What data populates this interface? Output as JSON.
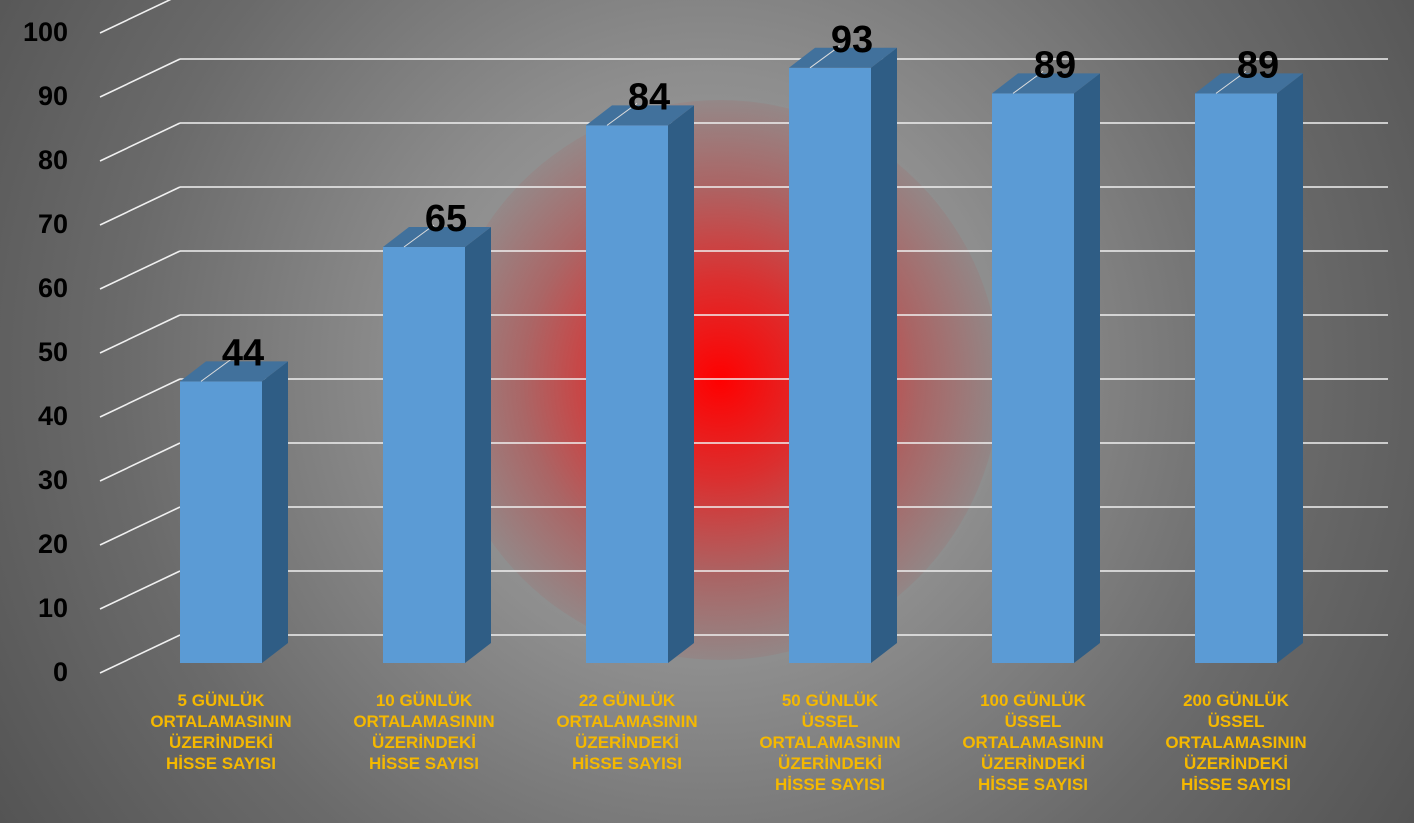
{
  "colors": {
    "bar_front": "#5b9bd5",
    "bar_side": "#2f5d85",
    "bar_top": "#41719c",
    "category_text": "#f5b800",
    "glow": "#ff0000"
  },
  "chart_data": {
    "type": "bar",
    "style": "3d-column",
    "ylim": [
      0,
      100
    ],
    "yticks": [
      "0",
      "10",
      "20",
      "30",
      "40",
      "50",
      "60",
      "70",
      "80",
      "90",
      "100"
    ],
    "grid": true,
    "legend": "none",
    "categories": [
      [
        "5 GÜNLÜK",
        "ORTALAMASININ",
        "ÜZERİNDEKİ",
        "HİSSE SAYISI"
      ],
      [
        "10 GÜNLÜK",
        "ORTALAMASININ",
        "ÜZERİNDEKİ",
        "HİSSE SAYISI"
      ],
      [
        "22 GÜNLÜK",
        "ORTALAMASININ",
        "ÜZERİNDEKİ",
        "HİSSE SAYISI"
      ],
      [
        "50 GÜNLÜK",
        "ÜSSEL",
        "ORTALAMASININ",
        "ÜZERİNDEKİ",
        "HİSSE SAYISI"
      ],
      [
        "100 GÜNLÜK",
        "ÜSSEL",
        "ORTALAMASININ",
        "ÜZERİNDEKİ",
        "HİSSE SAYISI"
      ],
      [
        "200 GÜNLÜK",
        "ÜSSEL",
        "ORTALAMASININ",
        "ÜZERİNDEKİ",
        "HİSSE SAYISI"
      ]
    ],
    "values": [
      44,
      65,
      84,
      93,
      89,
      89
    ],
    "data_labels": [
      "44",
      "65",
      "84",
      "93",
      "89",
      "89"
    ]
  }
}
